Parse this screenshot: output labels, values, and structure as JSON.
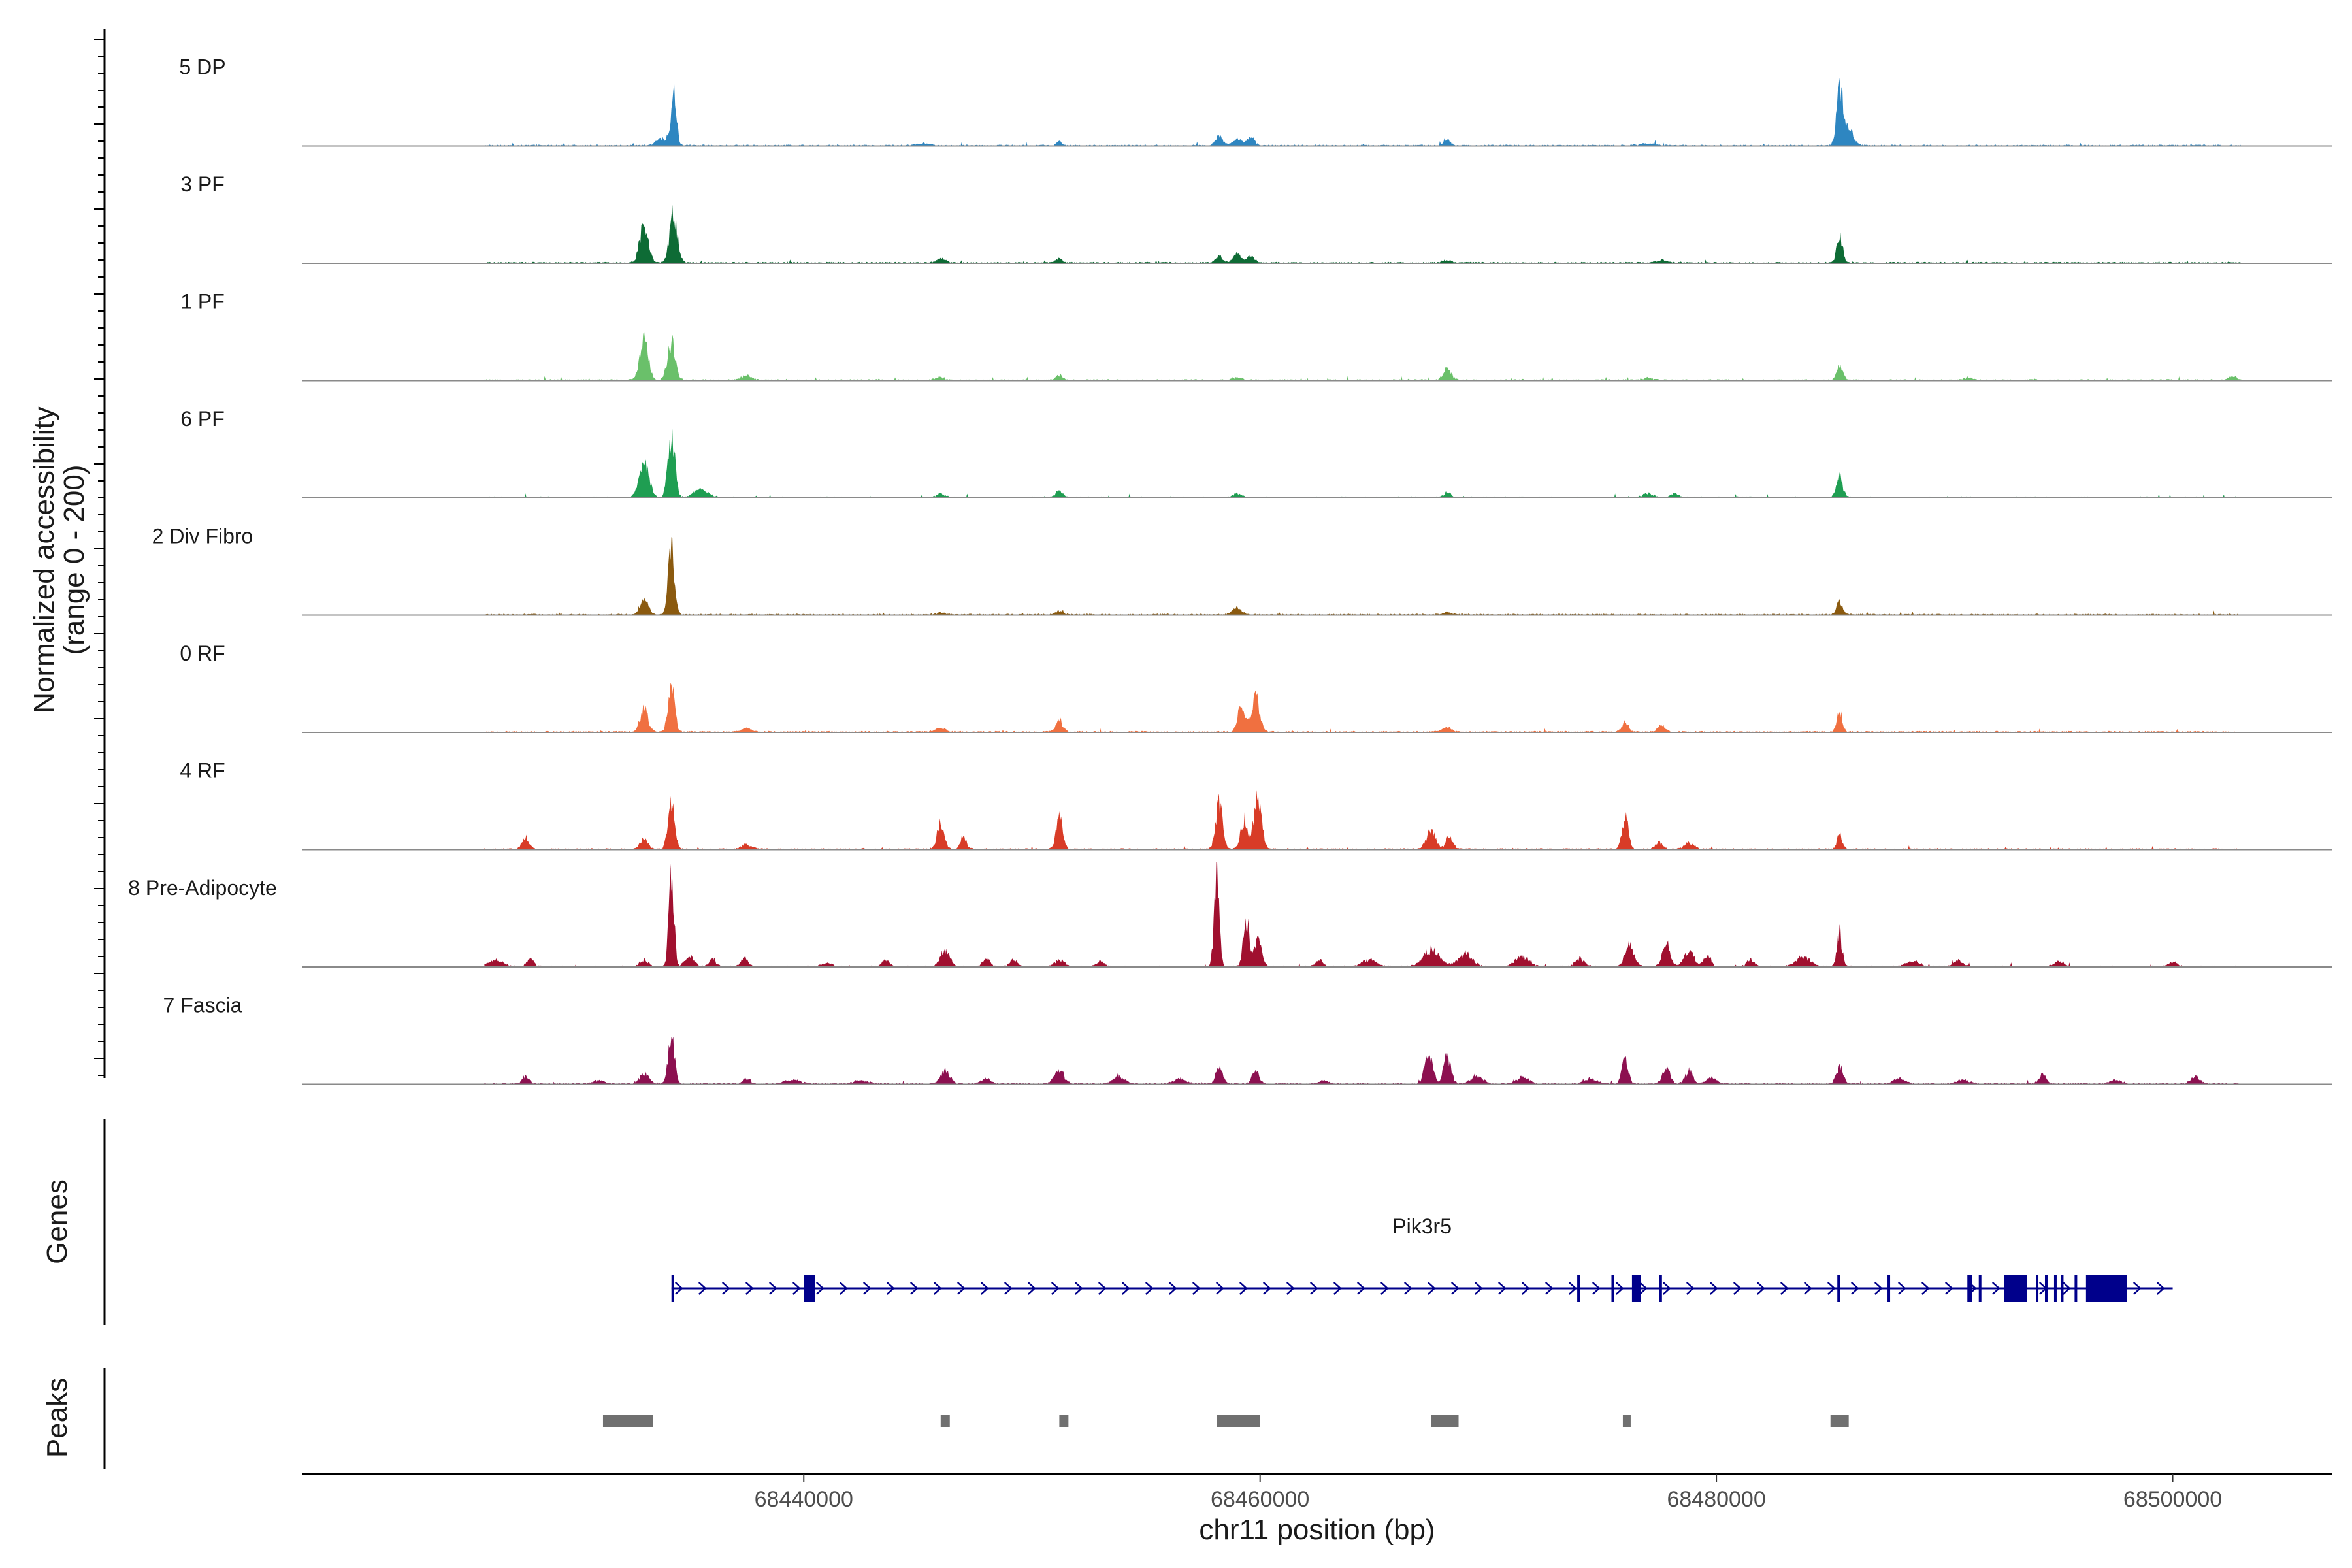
{
  "chart_data": {
    "type": "area",
    "title": "",
    "xlabel": "chr11 position (bp)",
    "ylabel_line1": "Normalized accessibility",
    "ylabel_line2": "(range 0 - 200)",
    "ylim": [
      0,
      200
    ],
    "xlim": [
      68418000,
      68507000
    ],
    "plot_start": 68426000,
    "plot_end": 68503000,
    "x_ticks": [
      68440000,
      68460000,
      68480000,
      68500000
    ],
    "x_tick_labels": [
      "68440000",
      "68460000",
      "68480000",
      "68500000"
    ],
    "genes_label": "Genes",
    "peaks_label": "Peaks",
    "tracks": [
      {
        "name": "5 DP",
        "color": "#2e86c1",
        "peaks": [
          [
            68433800,
            10,
            250
          ],
          [
            68434300,
            80,
            120
          ],
          [
            68445200,
            3,
            300
          ],
          [
            68451200,
            6,
            100
          ],
          [
            68458200,
            15,
            150
          ],
          [
            68459000,
            10,
            200
          ],
          [
            68459600,
            14,
            150
          ],
          [
            68468200,
            8,
            150
          ],
          [
            68477000,
            3,
            300
          ],
          [
            68485400,
            95,
            130
          ],
          [
            68485800,
            25,
            200
          ]
        ]
      },
      {
        "name": "3 PF",
        "color": "#0e6b35",
        "peaks": [
          [
            68433000,
            65,
            180
          ],
          [
            68434300,
            70,
            170
          ],
          [
            68446000,
            6,
            200
          ],
          [
            68451200,
            8,
            120
          ],
          [
            68458200,
            10,
            150
          ],
          [
            68459000,
            15,
            160
          ],
          [
            68459600,
            12,
            150
          ],
          [
            68468200,
            4,
            200
          ],
          [
            68477600,
            4,
            200
          ],
          [
            68485400,
            45,
            120
          ]
        ]
      },
      {
        "name": "1 PF",
        "color": "#6ac06a",
        "peaks": [
          [
            68433000,
            70,
            180
          ],
          [
            68434200,
            55,
            170
          ],
          [
            68437500,
            8,
            200
          ],
          [
            68446000,
            4,
            200
          ],
          [
            68451200,
            8,
            150
          ],
          [
            68459000,
            4,
            200
          ],
          [
            68468200,
            18,
            170
          ],
          [
            68477000,
            3,
            200
          ],
          [
            68485400,
            20,
            140
          ],
          [
            68491000,
            3,
            200
          ],
          [
            68502600,
            6,
            150
          ]
        ]
      },
      {
        "name": "6 PF",
        "color": "#1f9e52",
        "peaks": [
          [
            68433000,
            60,
            200
          ],
          [
            68434200,
            95,
            150
          ],
          [
            68435500,
            12,
            300
          ],
          [
            68446000,
            5,
            200
          ],
          [
            68451200,
            10,
            150
          ],
          [
            68459000,
            5,
            200
          ],
          [
            68468200,
            8,
            150
          ],
          [
            68477000,
            6,
            200
          ],
          [
            68478200,
            6,
            150
          ],
          [
            68485400,
            30,
            140
          ]
        ]
      },
      {
        "name": "2 Div Fibro",
        "color": "#8b5a0f",
        "peaks": [
          [
            68433000,
            25,
            170
          ],
          [
            68434200,
            95,
            140
          ],
          [
            68446000,
            3,
            200
          ],
          [
            68451200,
            6,
            150
          ],
          [
            68459000,
            9,
            200
          ],
          [
            68468200,
            3,
            200
          ],
          [
            68485400,
            22,
            120
          ]
        ]
      },
      {
        "name": "0 RF",
        "color": "#f07040",
        "peaks": [
          [
            68433000,
            35,
            170
          ],
          [
            68434200,
            70,
            140
          ],
          [
            68437500,
            6,
            200
          ],
          [
            68446000,
            6,
            200
          ],
          [
            68451200,
            18,
            150
          ],
          [
            68459200,
            40,
            170
          ],
          [
            68459800,
            55,
            170
          ],
          [
            68468200,
            6,
            200
          ],
          [
            68476000,
            14,
            150
          ],
          [
            68477600,
            10,
            150
          ],
          [
            68485400,
            30,
            120
          ]
        ]
      },
      {
        "name": "4 RF",
        "color": "#d83c27",
        "peaks": [
          [
            68427800,
            18,
            150
          ],
          [
            68433000,
            15,
            170
          ],
          [
            68434200,
            80,
            140
          ],
          [
            68437500,
            8,
            200
          ],
          [
            68446000,
            40,
            160
          ],
          [
            68447000,
            20,
            120
          ],
          [
            68451200,
            45,
            140
          ],
          [
            68458200,
            70,
            150
          ],
          [
            68459300,
            45,
            150
          ],
          [
            68459900,
            75,
            170
          ],
          [
            68467500,
            30,
            200
          ],
          [
            68468300,
            18,
            150
          ],
          [
            68476000,
            50,
            140
          ],
          [
            68477500,
            10,
            150
          ],
          [
            68478800,
            10,
            200
          ],
          [
            68485400,
            22,
            120
          ]
        ]
      },
      {
        "name": "8 Pre-Adipocyte",
        "color": "#a0102f",
        "peaks": [
          [
            68426500,
            10,
            300
          ],
          [
            68428000,
            12,
            150
          ],
          [
            68433000,
            10,
            170
          ],
          [
            68434200,
            140,
            110
          ],
          [
            68435000,
            15,
            200
          ],
          [
            68436000,
            10,
            150
          ],
          [
            68437400,
            12,
            150
          ],
          [
            68441000,
            5,
            200
          ],
          [
            68443600,
            10,
            150
          ],
          [
            68446200,
            25,
            200
          ],
          [
            68448000,
            12,
            150
          ],
          [
            68449200,
            10,
            150
          ],
          [
            68451200,
            10,
            200
          ],
          [
            68453000,
            8,
            150
          ],
          [
            68458100,
            145,
            110
          ],
          [
            68459400,
            70,
            130
          ],
          [
            68459900,
            40,
            150
          ],
          [
            68462600,
            10,
            150
          ],
          [
            68464800,
            10,
            300
          ],
          [
            68467500,
            25,
            350
          ],
          [
            68469000,
            20,
            300
          ],
          [
            68471500,
            15,
            300
          ],
          [
            68474000,
            12,
            200
          ],
          [
            68476200,
            30,
            200
          ],
          [
            68477800,
            35,
            170
          ],
          [
            68478800,
            25,
            200
          ],
          [
            68479600,
            18,
            150
          ],
          [
            68481500,
            10,
            150
          ],
          [
            68483800,
            15,
            300
          ],
          [
            68485400,
            50,
            110
          ],
          [
            68488600,
            8,
            300
          ],
          [
            68490600,
            8,
            200
          ],
          [
            68495000,
            8,
            200
          ],
          [
            68500000,
            6,
            200
          ]
        ]
      },
      {
        "name": "7 Fascia",
        "color": "#8c1050",
        "peaks": [
          [
            68427800,
            12,
            150
          ],
          [
            68431000,
            5,
            250
          ],
          [
            68433000,
            15,
            200
          ],
          [
            68434200,
            70,
            140
          ],
          [
            68437500,
            8,
            150
          ],
          [
            68439500,
            6,
            300
          ],
          [
            68442500,
            5,
            300
          ],
          [
            68446200,
            20,
            200
          ],
          [
            68448000,
            8,
            200
          ],
          [
            68451200,
            20,
            200
          ],
          [
            68453800,
            10,
            250
          ],
          [
            68456500,
            8,
            250
          ],
          [
            68458200,
            25,
            150
          ],
          [
            68459800,
            20,
            150
          ],
          [
            68462800,
            5,
            200
          ],
          [
            68467400,
            55,
            160
          ],
          [
            68468200,
            40,
            160
          ],
          [
            68469500,
            12,
            250
          ],
          [
            68471500,
            10,
            250
          ],
          [
            68474500,
            8,
            250
          ],
          [
            68476000,
            35,
            140
          ],
          [
            68477800,
            25,
            160
          ],
          [
            68478800,
            20,
            160
          ],
          [
            68479800,
            10,
            200
          ],
          [
            68485400,
            25,
            150
          ],
          [
            68488000,
            8,
            250
          ],
          [
            68490800,
            6,
            250
          ],
          [
            68494300,
            15,
            150
          ],
          [
            68497500,
            6,
            250
          ],
          [
            68501000,
            10,
            200
          ]
        ]
      }
    ],
    "genes": [
      {
        "name": "Pik3r5",
        "strand": "+",
        "start": 68434200,
        "end": 68500000,
        "exons": [
          [
            68434200,
            68434300
          ],
          [
            68440000,
            68440500
          ],
          [
            68473900,
            68474000
          ],
          [
            68475400,
            68475500
          ],
          [
            68476300,
            68476700
          ],
          [
            68477500,
            68477600
          ],
          [
            68485300,
            68485400
          ],
          [
            68487500,
            68487600
          ],
          [
            68491000,
            68491200
          ],
          [
            68491500,
            68491600
          ],
          [
            68492600,
            68493600
          ],
          [
            68494000,
            68494100
          ],
          [
            68494400,
            68494500
          ],
          [
            68494800,
            68494900
          ],
          [
            68495100,
            68495200
          ],
          [
            68495700,
            68495800
          ],
          [
            68496200,
            68498000
          ]
        ]
      }
    ],
    "peak_regions": [
      [
        68431200,
        68433400
      ],
      [
        68446000,
        68446400
      ],
      [
        68451200,
        68451600
      ],
      [
        68458100,
        68460000
      ],
      [
        68467500,
        68468700
      ],
      [
        68475900,
        68476200
      ],
      [
        68485000,
        68485800
      ]
    ]
  }
}
